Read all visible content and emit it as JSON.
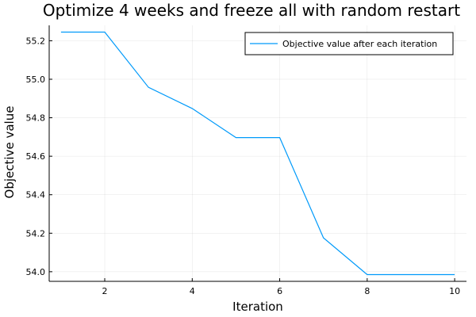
{
  "chart_data": {
    "type": "line",
    "title": "Optimize 4 weeks and freeze all with random restart",
    "xlabel": "Iteration",
    "ylabel": "Objective value",
    "xlim": [
      0.73,
      10.27
    ],
    "ylim": [
      53.95,
      55.28
    ],
    "xticks": [
      2,
      4,
      6,
      8,
      10
    ],
    "yticks": [
      54.0,
      54.2,
      54.4,
      54.6,
      54.8,
      55.0,
      55.2
    ],
    "grid": true,
    "legend_position": "top-right",
    "series": [
      {
        "name": "Objective value after each iteration",
        "color": "#009AFA",
        "x": [
          1,
          2,
          3,
          4,
          5,
          6,
          7,
          8,
          9,
          10
        ],
        "y": [
          55.245,
          55.245,
          54.958,
          54.848,
          54.697,
          54.697,
          54.176,
          53.985,
          53.985,
          53.985
        ]
      }
    ]
  }
}
